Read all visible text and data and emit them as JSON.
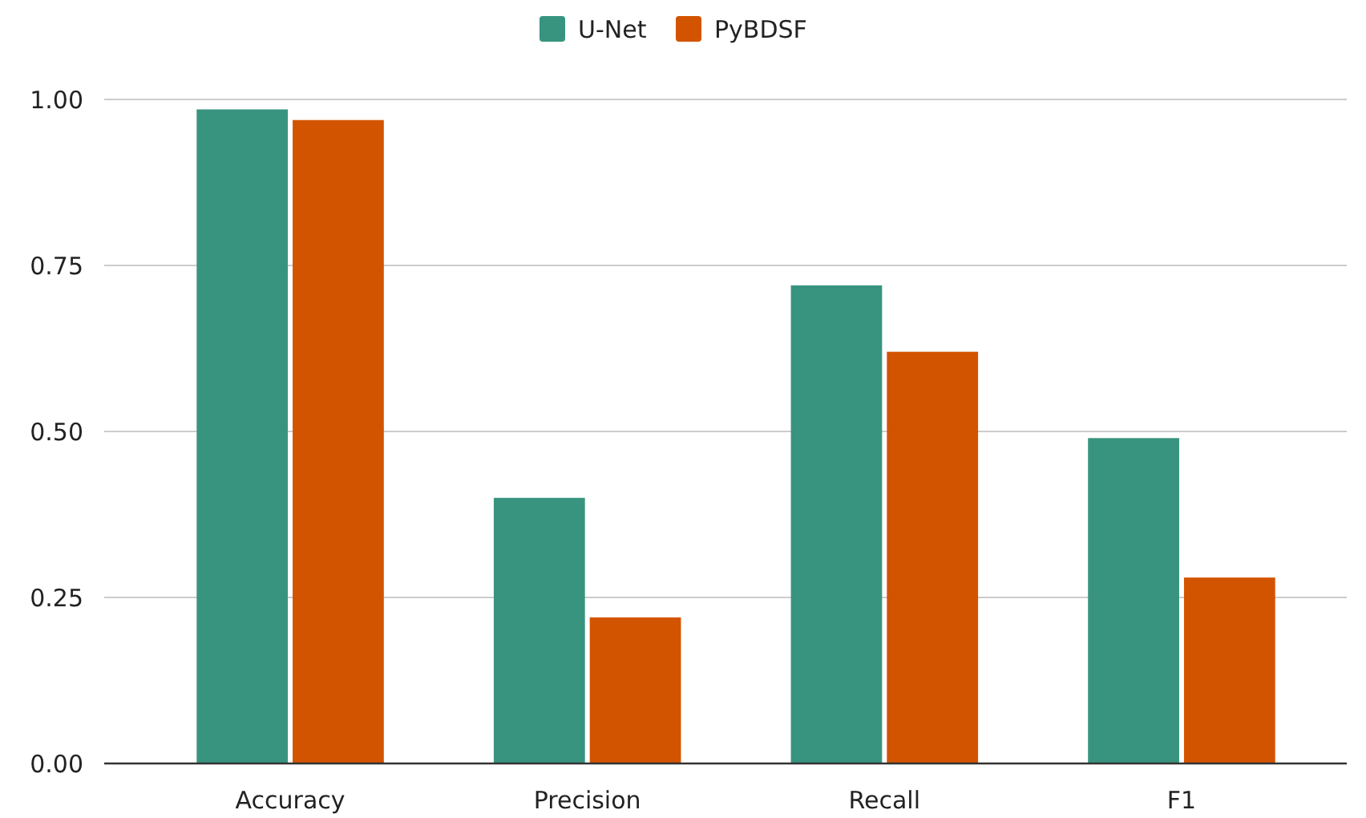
{
  "chart_data": {
    "type": "bar",
    "categories": [
      "Accuracy",
      "Precision",
      "Recall",
      "F1"
    ],
    "series": [
      {
        "name": "U-Net",
        "color": "#38947f",
        "values": [
          0.985,
          0.4,
          0.72,
          0.49
        ]
      },
      {
        "name": "PyBDSF",
        "color": "#d35400",
        "values": [
          0.969,
          0.22,
          0.62,
          0.28
        ]
      }
    ],
    "ylim": [
      0,
      1
    ],
    "yticks": [
      {
        "value": 0,
        "label": "0.00"
      },
      {
        "value": 0.25,
        "label": "0.25"
      },
      {
        "value": 0.5,
        "label": "0.50"
      },
      {
        "value": 0.75,
        "label": "0.75"
      },
      {
        "value": 1,
        "label": "1.00"
      }
    ],
    "grid": "y",
    "legend": "top"
  }
}
